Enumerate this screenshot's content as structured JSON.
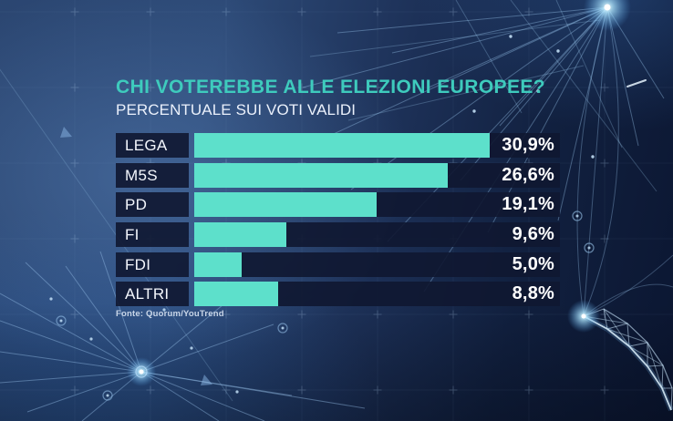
{
  "header": {
    "title": "CHI VOTEREBBE ALLE ELEZIONI EUROPEE?",
    "subtitle": "PERCENTUALE SUI VOTI VALIDI"
  },
  "source": "Fonte: Quorum/YouTrend",
  "colors": {
    "title_teal": "#3ecbbd",
    "bar_teal": "#5de0cb",
    "row_background": "#1b2444",
    "value_text": "#ffffff",
    "subtitle_text": "#eaf0fb",
    "background_blue": "#2d4a77",
    "background_dark_navy": "#0b1631",
    "network_cyan": "#9fcbf2"
  },
  "chart_data": {
    "type": "bar",
    "orientation": "horizontal",
    "title": "CHI VOTEREBBE ALLE ELEZIONI EUROPEE?",
    "subtitle": "PERCENTUALE SUI VOTI VALIDI",
    "source": "Fonte: Quorum/YouTrend",
    "categories": [
      "LEGA",
      "M5S",
      "PD",
      "FI",
      "FDI",
      "ALTRI"
    ],
    "values": [
      30.9,
      26.6,
      19.1,
      9.6,
      5.0,
      8.8
    ],
    "value_labels": [
      "30,9%",
      "26,6%",
      "19,1%",
      "9,6%",
      "5,0%",
      "8,8%"
    ],
    "xlim": [
      0,
      38.3
    ],
    "bar_color": "#5de0cb",
    "grid": false,
    "legend": false
  }
}
